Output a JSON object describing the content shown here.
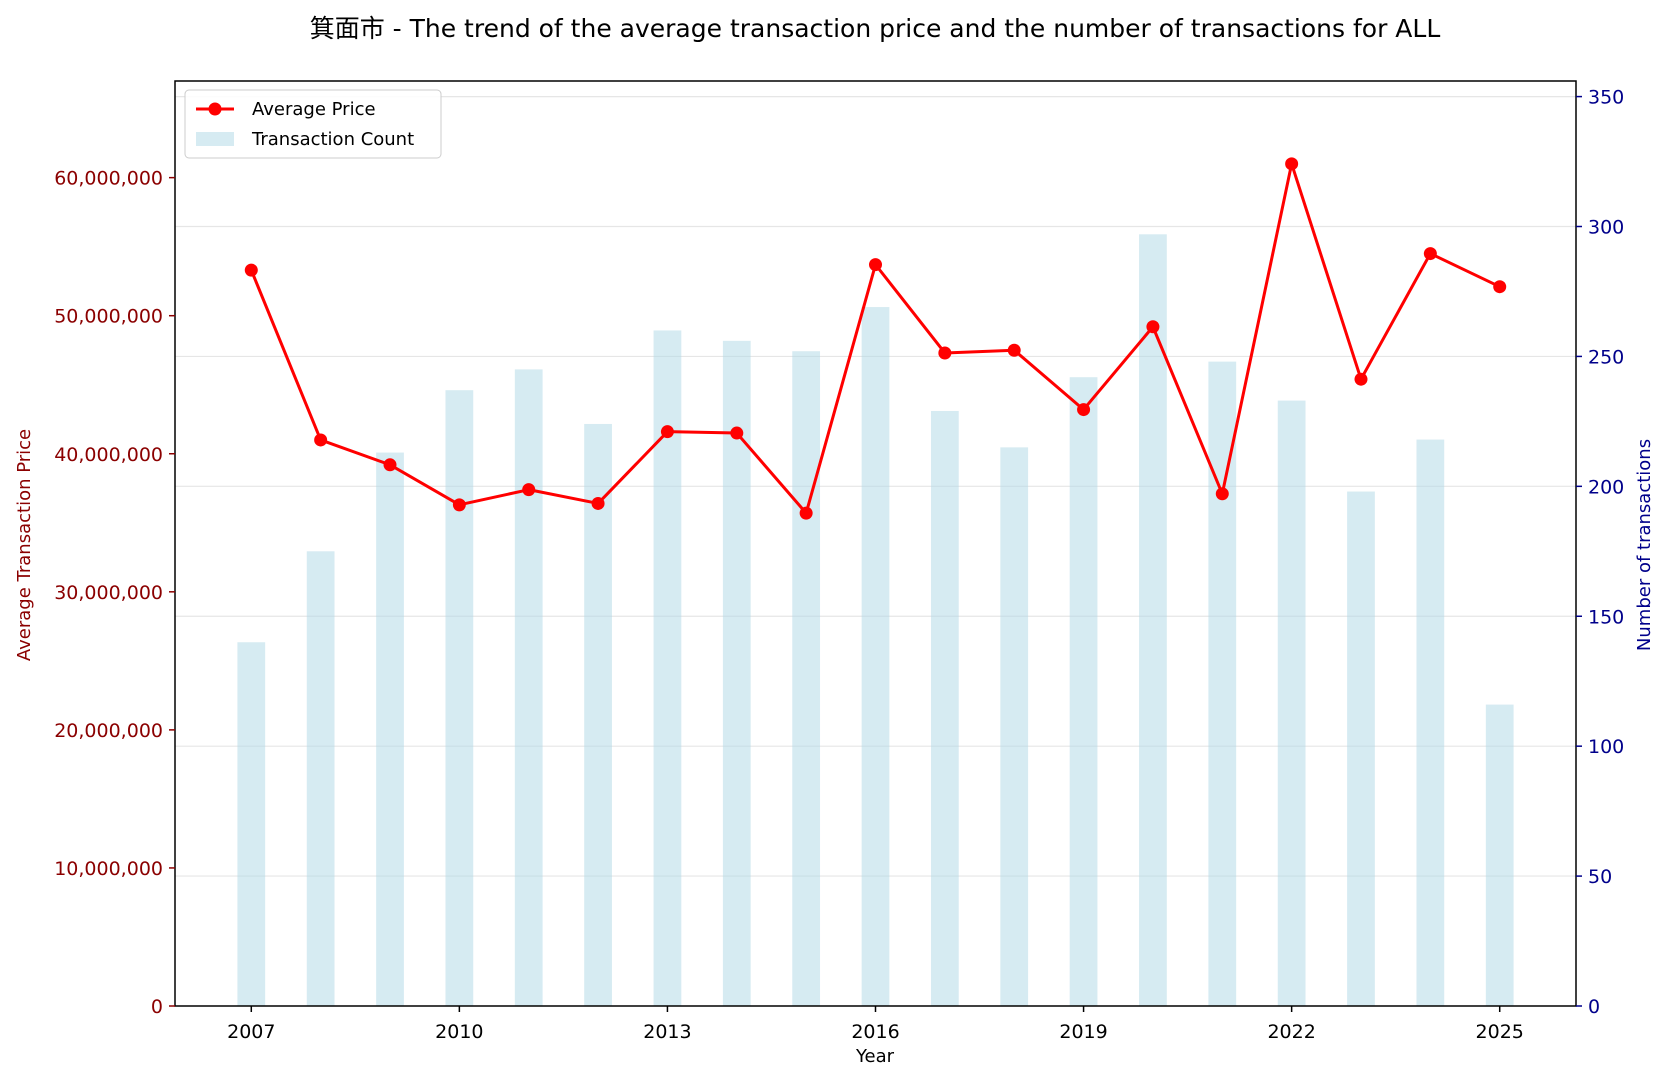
{
  "chart_data": {
    "type": "bar+line",
    "title": "箕面市 - The trend of the average transaction price and the number of transactions for ALL",
    "xlabel": "Year",
    "ylabel_left": "Average Transaction Price",
    "ylabel_right": "Number of transactions",
    "x": [
      2007,
      2008,
      2009,
      2010,
      2011,
      2012,
      2013,
      2014,
      2015,
      2016,
      2017,
      2018,
      2019,
      2020,
      2021,
      2022,
      2023,
      2024,
      2025
    ],
    "x_ticks": [
      "2007",
      "2010",
      "2013",
      "2016",
      "2019",
      "2022",
      "2025"
    ],
    "xlim": [
      2005.9,
      2026.1
    ],
    "ylim_left": [
      0,
      67000000
    ],
    "yticks_left": [
      "0",
      "10,000,000",
      "20,000,000",
      "30,000,000",
      "40,000,000",
      "50,000,000",
      "60,000,000"
    ],
    "ylim_right": [
      0,
      356
    ],
    "yticks_right": [
      "0",
      "50",
      "100",
      "150",
      "200",
      "250",
      "300",
      "350"
    ],
    "grid": "horizontal",
    "legend_position": "upper-left",
    "series": [
      {
        "name": "Average Price",
        "type": "line",
        "axis": "left",
        "color": "#ff0000",
        "values": [
          53300000,
          41000000,
          39200000,
          36300000,
          37400000,
          36400000,
          41600000,
          41500000,
          35700000,
          53700000,
          47300000,
          47500000,
          43200000,
          49200000,
          37100000,
          61000000,
          45400000,
          54500000,
          52100000
        ]
      },
      {
        "name": "Transaction Count",
        "type": "bar",
        "axis": "right",
        "color": "#add8e6",
        "values": [
          140,
          175,
          213,
          237,
          245,
          224,
          260,
          256,
          252,
          269,
          229,
          215,
          242,
          297,
          248,
          233,
          198,
          218,
          116
        ]
      }
    ],
    "colors": {
      "left_axis": "#8b0000",
      "right_axis": "#00008b",
      "grid": "#e6e6e6"
    }
  }
}
